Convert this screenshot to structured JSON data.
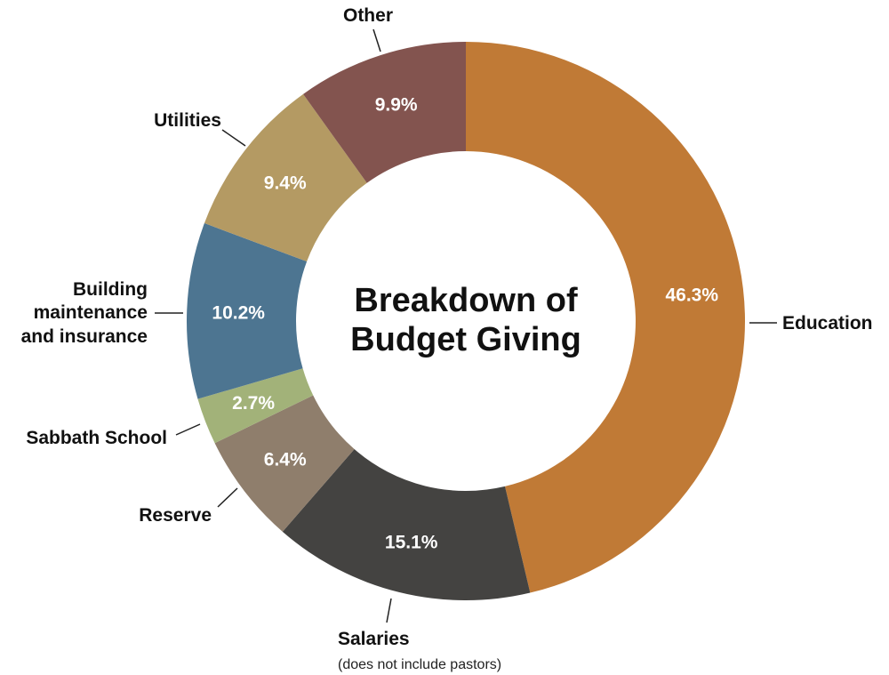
{
  "chart_data": {
    "type": "pie",
    "title_lines": [
      "Breakdown of",
      "Budget Giving"
    ],
    "slices": [
      {
        "label": "Education",
        "value": 46.3,
        "display": "46.3%",
        "color": "#C07A36"
      },
      {
        "label": "Salaries",
        "sublabel": "(does not include pastors)",
        "value": 15.1,
        "display": "15.1%",
        "color": "#444341"
      },
      {
        "label": "Reserve",
        "value": 6.4,
        "display": "6.4%",
        "color": "#8F7E6C"
      },
      {
        "label": "Sabbath School",
        "value": 2.7,
        "display": "2.7%",
        "color": "#A2B279"
      },
      {
        "label_lines": [
          "Building",
          "maintenance",
          "and insurance"
        ],
        "value": 10.2,
        "display": "10.2%",
        "color": "#4D7591"
      },
      {
        "label": "Utilities",
        "value": 9.4,
        "display": "9.4%",
        "color": "#B49A63"
      },
      {
        "label": "Other",
        "value": 9.9,
        "display": "9.9%",
        "color": "#83544F"
      }
    ]
  }
}
